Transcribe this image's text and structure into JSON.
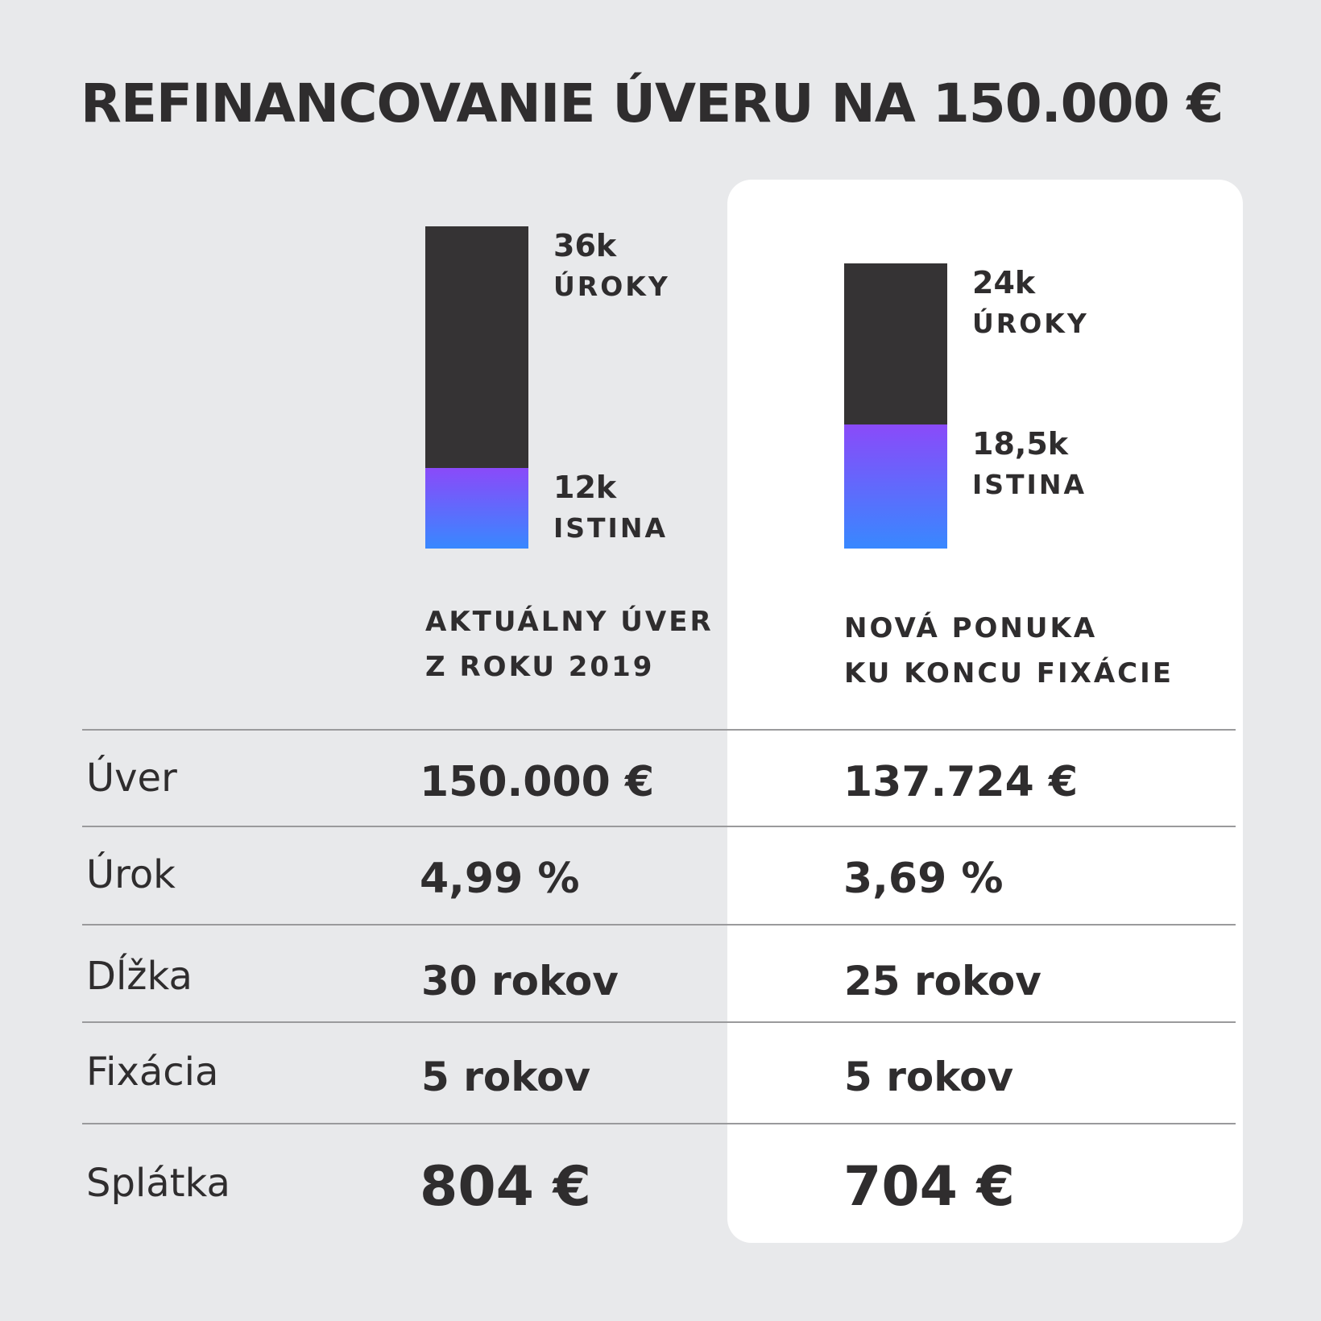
{
  "title": "REFINANCOVANIE ÚVERU NA 150.000 €",
  "colors": {
    "interest": "#353334",
    "principal_top": "#8a4af9",
    "principal_bottom": "#3888ff",
    "card": "#ffffff",
    "background": "#e8e9eb"
  },
  "chart_data": {
    "type": "bar",
    "stacked": true,
    "categories": [
      "AKTUÁLNY ÚVER Z ROKU 2019",
      "NOVÁ PONUKA KU KONCU FIXÁCIE"
    ],
    "series": [
      {
        "name": "ISTINA",
        "values": [
          12,
          18.5
        ],
        "labels": [
          "12k",
          "18,5k"
        ]
      },
      {
        "name": "ÚROKY",
        "values": [
          36,
          24
        ],
        "labels": [
          "36k",
          "24k"
        ]
      }
    ],
    "columns": [
      {
        "head": [
          "AKTUÁLNY ÚVER",
          "Z ROKU 2019"
        ]
      },
      {
        "head": [
          "NOVÁ PONUKA",
          "KU KONCU FIXÁCIE"
        ]
      }
    ]
  },
  "table": {
    "rows": [
      {
        "label": "Úver",
        "values": [
          "150.000 €",
          "137.724 €"
        ]
      },
      {
        "label": "Úrok",
        "values": [
          "4,99 %",
          "3,69 %"
        ]
      },
      {
        "label": "Dĺžka",
        "values": [
          "30 rokov",
          "25 rokov"
        ]
      },
      {
        "label": "Fixácia",
        "values": [
          "5 rokov",
          "5 rokov"
        ]
      },
      {
        "label": "Splátka",
        "values": [
          "804 €",
          "704 €"
        ]
      }
    ]
  }
}
